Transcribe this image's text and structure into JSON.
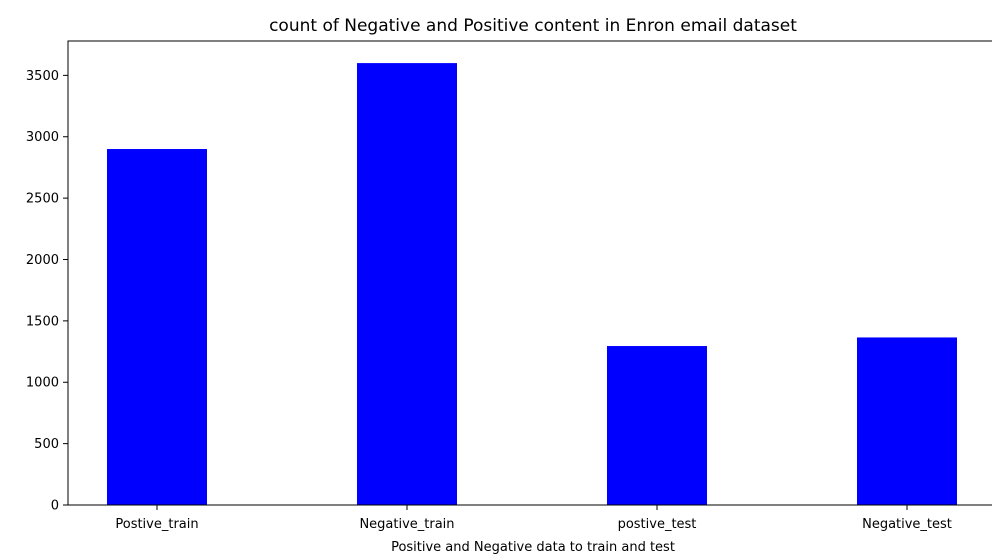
{
  "chart_data": {
    "type": "bar",
    "title": "count of Negative and Positive content in Enron email dataset",
    "xlabel": "Positive and Negative data to train and test",
    "ylabel": "",
    "categories": [
      "Postive_train",
      "Negative_train",
      "postive_test",
      "Negative_test"
    ],
    "values": [
      2900,
      3600,
      1295,
      1365
    ],
    "ylim": [
      0,
      3780
    ],
    "yticks": [
      0,
      500,
      1000,
      1500,
      2000,
      2500,
      3000,
      3500
    ],
    "bar_color": "#0000ff",
    "grid": false,
    "legend": false
  }
}
